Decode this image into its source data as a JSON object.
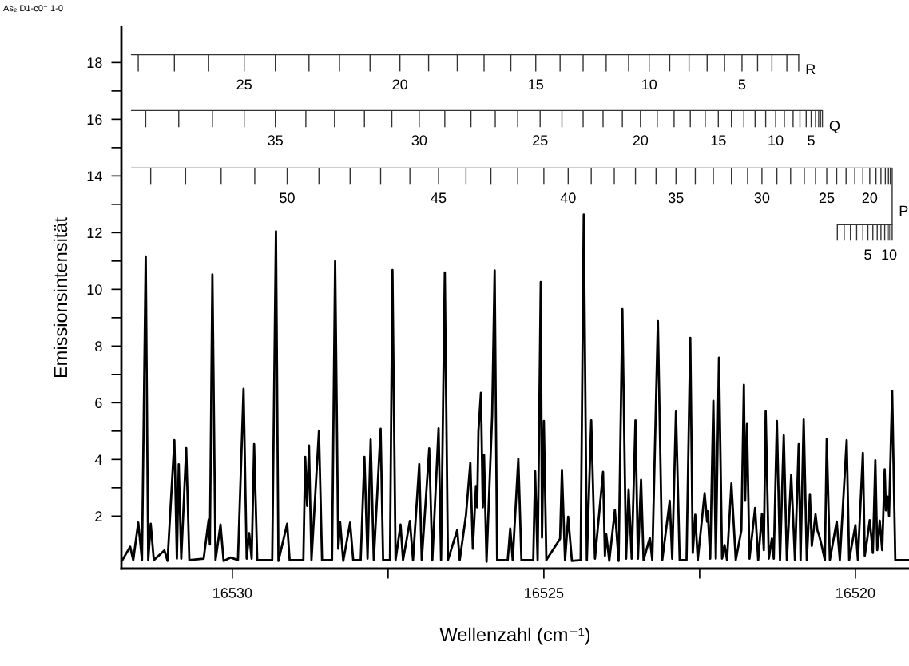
{
  "chart_data": {
    "type": "line",
    "title": "As₂ D1-c0⁻ 1-0",
    "xlabel": "Wellenzahl (cm⁻¹)",
    "ylabel": "Emissionsintensität",
    "xlim": [
      16531.78,
      16519.14
    ],
    "xticks": [
      16530,
      {
        "value": 16527.5,
        "label": null
      },
      16525,
      {
        "value": 16522.5,
        "label": null
      },
      16520
    ],
    "ylim": [
      0.15,
      19.25
    ],
    "yticks": [
      2,
      {
        "value": 3,
        "label": null
      },
      4,
      {
        "value": 5,
        "label": null
      },
      6,
      {
        "value": 7,
        "label": null
      },
      8,
      {
        "value": 9,
        "label": null
      },
      10,
      {
        "value": 11,
        "label": null
      },
      12,
      {
        "value": 13,
        "label": null
      },
      14,
      {
        "value": 15,
        "label": null
      },
      16,
      {
        "value": 17,
        "label": null
      },
      18
    ],
    "grid": false,
    "legend": false,
    "series": [
      {
        "color": "#000000",
        "x": [
          16531.77,
          16531.64,
          16531.59,
          16531.51,
          16531.45,
          16531.39,
          16531.35,
          16531.31,
          16531.26,
          16531.09,
          16531.04,
          16530.93,
          16530.89,
          16530.86,
          16530.82,
          16530.74,
          16530.69,
          16530.46,
          16530.38,
          16530.36,
          16530.32,
          16530.27,
          16530.19,
          16530.14,
          16530.03,
          16529.91,
          16529.82,
          16529.77,
          16529.73,
          16529.69,
          16529.65,
          16529.6,
          16529.36,
          16529.3,
          16529.26,
          16529.12,
          16529.08,
          16528.86,
          16528.83,
          16528.8,
          16528.77,
          16528.73,
          16528.61,
          16528.56,
          16528.4,
          16528.35,
          16528.3,
          16528.27,
          16528.22,
          16528.11,
          16528.06,
          16527.94,
          16527.88,
          16527.83,
          16527.78,
          16527.73,
          16527.62,
          16527.58,
          16527.47,
          16527.43,
          16527.38,
          16527.3,
          16527.26,
          16527.15,
          16527.1,
          16527.0,
          16526.96,
          16526.84,
          16526.79,
          16526.69,
          16526.65,
          16526.59,
          16526.54,
          16526.39,
          16526.35,
          16526.25,
          16526.18,
          16526.14,
          16526.09,
          16526.07,
          16526.05,
          16526.01,
          16525.98,
          16525.96,
          16525.92,
          16525.83,
          16525.79,
          16525.75,
          16525.58,
          16525.54,
          16525.5,
          16525.41,
          16525.36,
          16525.17,
          16525.14,
          16525.1,
          16525.05,
          16525.03,
          16525.0,
          16524.96,
          16524.74,
          16524.71,
          16524.66,
          16524.61,
          16524.55,
          16524.41,
          16524.36,
          16524.31,
          16524.24,
          16524.18,
          16524.05,
          16524.02,
          16524.0,
          16523.95,
          16523.86,
          16523.8,
          16523.74,
          16523.68,
          16523.64,
          16523.59,
          16523.53,
          16523.49,
          16523.44,
          16523.4,
          16523.3,
          16523.26,
          16523.17,
          16523.1,
          16522.98,
          16522.94,
          16522.88,
          16522.82,
          16522.71,
          16522.65,
          16522.61,
          16522.57,
          16522.53,
          16522.42,
          16522.38,
          16522.37,
          16522.33,
          16522.28,
          16522.24,
          16522.19,
          16522.14,
          16522.1,
          16522.06,
          16521.99,
          16521.92,
          16521.83,
          16521.79,
          16521.77,
          16521.74,
          16521.7,
          16521.61,
          16521.56,
          16521.5,
          16521.47,
          16521.44,
          16521.39,
          16521.34,
          16521.31,
          16521.26,
          16521.21,
          16521.15,
          16521.1,
          16521.03,
          16520.97,
          16520.91,
          16520.88,
          16520.83,
          16520.78,
          16520.73,
          16520.7,
          16520.64,
          16520.61,
          16520.58,
          16520.54,
          16520.49,
          16520.46,
          16520.41,
          16520.3,
          16520.25,
          16520.14,
          16520.1,
          16520.0,
          16519.96,
          16519.88,
          16519.85,
          16519.81,
          16519.77,
          16519.72,
          16519.68,
          16519.65,
          16519.61,
          16519.57,
          16519.53,
          16519.51,
          16519.48,
          16519.46,
          16519.41,
          16519.36,
          16519.14
        ],
        "values": [
          0.43,
          0.92,
          0.45,
          1.77,
          0.45,
          11.16,
          0.45,
          1.73,
          0.45,
          0.79,
          0.42,
          4.68,
          0.5,
          3.83,
          0.5,
          4.4,
          0.45,
          0.5,
          1.87,
          1.0,
          10.53,
          0.45,
          1.7,
          0.42,
          0.54,
          0.45,
          6.49,
          0.5,
          1.4,
          0.5,
          4.54,
          0.45,
          0.45,
          12.05,
          0.42,
          1.73,
          0.45,
          0.45,
          4.09,
          2.36,
          4.49,
          0.45,
          5.0,
          0.45,
          0.45,
          11.0,
          0.85,
          1.79,
          0.42,
          1.77,
          0.45,
          0.45,
          4.09,
          0.5,
          4.7,
          0.45,
          5.08,
          0.45,
          0.45,
          10.68,
          0.45,
          1.7,
          0.45,
          1.83,
          0.45,
          3.84,
          0.45,
          4.39,
          0.45,
          5.1,
          0.45,
          10.6,
          0.45,
          1.51,
          0.45,
          2.03,
          3.88,
          0.85,
          3.06,
          2.31,
          4.99,
          6.35,
          2.31,
          4.16,
          0.39,
          5.55,
          10.67,
          0.45,
          0.45,
          1.56,
          0.45,
          4.03,
          0.45,
          0.45,
          3.58,
          0.45,
          10.26,
          1.24,
          5.36,
          0.45,
          1.2,
          3.63,
          0.45,
          1.98,
          0.42,
          0.45,
          12.64,
          0.45,
          5.38,
          0.5,
          3.56,
          0.6,
          1.37,
          0.42,
          2.22,
          0.42,
          9.3,
          0.5,
          2.94,
          0.5,
          5.38,
          0.5,
          3.28,
          0.45,
          1.23,
          0.45,
          8.88,
          0.45,
          2.54,
          0.5,
          5.69,
          0.45,
          0.45,
          8.29,
          0.7,
          2.05,
          0.45,
          2.81,
          1.8,
          2.17,
          0.5,
          6.07,
          0.5,
          7.59,
          0.5,
          0.98,
          0.45,
          3.15,
          0.45,
          1.5,
          6.63,
          2.54,
          5.25,
          0.5,
          2.29,
          0.45,
          2.08,
          0.8,
          5.7,
          0.5,
          1.21,
          0.5,
          5.36,
          0.45,
          4.85,
          0.45,
          3.46,
          0.45,
          4.54,
          0.45,
          5.41,
          0.45,
          2.78,
          0.95,
          2.06,
          1.5,
          1.3,
          0.95,
          0.45,
          4.73,
          0.45,
          1.81,
          0.45,
          4.68,
          0.45,
          1.68,
          0.45,
          4.23,
          0.6,
          1.2,
          1.86,
          0.7,
          3.97,
          0.8,
          1.84,
          0.8,
          3.65,
          2.2,
          2.69,
          2.0,
          6.42,
          0.45,
          0.45
        ]
      },
      {
        "color": "#333333",
        "x": [
          16531.62,
          16531.51,
          16530.93,
          16530.38,
          16529.81,
          16529.31,
          16528.77,
          16528.28,
          16527.79,
          16527.31,
          16526.85,
          16526.39,
          16525.96,
          16525.53,
          16525.13,
          16524.74,
          16524.37,
          16524.0,
          16523.64,
          16523.31,
          16522.98,
          16522.67,
          16522.38,
          16522.1,
          16521.82,
          16521.57,
          16521.34,
          16521.1,
          16520.91
        ],
        "values": [
          18.28,
          18.28,
          18.28,
          18.28,
          18.28,
          18.28,
          18.28,
          18.28,
          18.28,
          18.28,
          18.28,
          18.28,
          18.28,
          18.28,
          18.28,
          18.28,
          18.28,
          18.28,
          18.28,
          18.28,
          18.28,
          18.28,
          18.28,
          18.28,
          18.28,
          18.28,
          18.28,
          18.28,
          18.28
        ],
        "errors": [
          null,
          [
            17.69,
            18.28
          ],
          [
            17.69,
            18.28
          ],
          [
            17.69,
            18.28
          ],
          [
            17.69,
            18.28
          ],
          [
            17.69,
            18.28
          ],
          [
            17.69,
            18.28
          ],
          [
            17.69,
            18.28
          ],
          [
            17.69,
            18.28
          ],
          [
            17.69,
            18.28
          ],
          [
            17.69,
            18.28
          ],
          [
            17.69,
            18.28
          ],
          [
            17.69,
            18.28
          ],
          [
            17.69,
            18.28
          ],
          [
            17.69,
            18.28
          ],
          [
            17.69,
            18.28
          ],
          [
            17.69,
            18.28
          ],
          [
            17.69,
            18.28
          ],
          [
            17.69,
            18.28
          ],
          [
            17.69,
            18.28
          ],
          [
            17.69,
            18.28
          ],
          [
            17.69,
            18.28
          ],
          [
            17.69,
            18.28
          ],
          [
            17.69,
            18.28
          ],
          [
            17.69,
            18.28
          ],
          [
            17.69,
            18.28
          ],
          [
            17.69,
            18.28
          ],
          [
            17.69,
            18.28
          ],
          [
            17.69,
            18.28
          ]
        ]
      },
      {
        "color": "#333333",
        "x": [
          16531.62,
          16531.39,
          16530.86,
          16530.32,
          16529.81,
          16529.31,
          16528.82,
          16528.36,
          16527.88,
          16527.44,
          16527.0,
          16526.59,
          16526.17,
          16525.78,
          16525.42,
          16525.06,
          16524.71,
          16524.37,
          16524.05,
          16523.74,
          16523.45,
          16523.18,
          16522.91,
          16522.65,
          16522.41,
          16522.2,
          16521.99,
          16521.79,
          16521.61,
          16521.44,
          16521.28,
          16521.14,
          16521.0,
          16520.89,
          16520.79,
          16520.71,
          16520.64,
          16520.59,
          16520.56,
          16520.53
        ],
        "values": [
          16.31,
          16.31,
          16.31,
          16.31,
          16.31,
          16.31,
          16.31,
          16.31,
          16.31,
          16.31,
          16.31,
          16.31,
          16.31,
          16.31,
          16.31,
          16.31,
          16.31,
          16.31,
          16.31,
          16.31,
          16.31,
          16.31,
          16.31,
          16.31,
          16.31,
          16.31,
          16.31,
          16.31,
          16.31,
          16.31,
          16.31,
          16.31,
          16.31,
          16.31,
          16.31,
          16.31,
          16.31,
          16.31,
          16.31,
          16.31
        ],
        "errors": [
          null,
          [
            15.72,
            16.31
          ],
          [
            15.72,
            16.31
          ],
          [
            15.72,
            16.31
          ],
          [
            15.72,
            16.31
          ],
          [
            15.72,
            16.31
          ],
          [
            15.72,
            16.31
          ],
          [
            15.72,
            16.31
          ],
          [
            15.72,
            16.31
          ],
          [
            15.72,
            16.31
          ],
          [
            15.72,
            16.31
          ],
          [
            15.72,
            16.31
          ],
          [
            15.72,
            16.31
          ],
          [
            15.72,
            16.31
          ],
          [
            15.72,
            16.31
          ],
          [
            15.72,
            16.31
          ],
          [
            15.72,
            16.31
          ],
          [
            15.72,
            16.31
          ],
          [
            15.72,
            16.31
          ],
          [
            15.72,
            16.31
          ],
          [
            15.72,
            16.31
          ],
          [
            15.72,
            16.31
          ],
          [
            15.72,
            16.31
          ],
          [
            15.72,
            16.31
          ],
          [
            15.72,
            16.31
          ],
          [
            15.72,
            16.31
          ],
          [
            15.72,
            16.31
          ],
          [
            15.72,
            16.31
          ],
          [
            15.72,
            16.31
          ],
          [
            15.72,
            16.31
          ],
          [
            15.72,
            16.31
          ],
          [
            15.72,
            16.31
          ],
          [
            15.72,
            16.31
          ],
          [
            15.72,
            16.31
          ],
          [
            15.72,
            16.31
          ],
          [
            15.72,
            16.31
          ],
          [
            15.72,
            16.31
          ],
          [
            15.72,
            16.31
          ],
          [
            15.72,
            16.31
          ],
          [
            15.72,
            16.31
          ]
        ]
      },
      {
        "color": "#333333",
        "x": [
          16531.62,
          16531.31,
          16530.75,
          16530.18,
          16529.64,
          16529.12,
          16528.61,
          16528.11,
          16527.62,
          16527.15,
          16526.69,
          16526.25,
          16525.85,
          16525.42,
          16525.0,
          16524.61,
          16524.24,
          16523.87,
          16523.53,
          16523.2,
          16522.88,
          16522.57,
          16522.28,
          16521.99,
          16521.73,
          16521.5,
          16521.26,
          16521.04,
          16520.82,
          16520.64,
          16520.46,
          16520.3,
          16520.15,
          16520.01,
          16519.88,
          16519.77,
          16519.67,
          16519.59,
          16519.52,
          16519.47,
          16519.44,
          16519.41,
          16519.41,
          16519.43,
          16519.46,
          16519.49,
          16519.53,
          16519.59,
          16519.65,
          16519.72,
          16519.8,
          16519.88,
          16519.98,
          16520.08,
          16520.18,
          16520.29
        ],
        "values": [
          14.28,
          14.28,
          14.28,
          14.28,
          14.28,
          14.28,
          14.28,
          14.28,
          14.28,
          14.28,
          14.28,
          14.28,
          14.28,
          14.28,
          14.28,
          14.28,
          14.28,
          14.28,
          14.28,
          14.28,
          14.28,
          14.28,
          14.28,
          14.28,
          14.28,
          14.28,
          14.28,
          14.28,
          14.28,
          14.28,
          14.28,
          14.28,
          14.28,
          14.28,
          14.28,
          14.28,
          14.28,
          14.28,
          14.28,
          14.28,
          14.28,
          14.28,
          12.28,
          12.28,
          12.28,
          12.28,
          12.28,
          12.28,
          12.28,
          12.28,
          12.28,
          12.28,
          12.28,
          12.28,
          12.28,
          12.28
        ],
        "errors": [
          null,
          [
            13.69,
            14.28
          ],
          [
            13.69,
            14.28
          ],
          [
            13.69,
            14.28
          ],
          [
            13.69,
            14.28
          ],
          [
            13.69,
            14.28
          ],
          [
            13.69,
            14.28
          ],
          [
            13.69,
            14.28
          ],
          [
            13.69,
            14.28
          ],
          [
            13.69,
            14.28
          ],
          [
            13.69,
            14.28
          ],
          [
            13.69,
            14.28
          ],
          [
            13.69,
            14.28
          ],
          [
            13.69,
            14.28
          ],
          [
            13.69,
            14.28
          ],
          [
            13.69,
            14.28
          ],
          [
            13.69,
            14.28
          ],
          [
            13.69,
            14.28
          ],
          [
            13.69,
            14.28
          ],
          [
            13.69,
            14.28
          ],
          [
            13.69,
            14.28
          ],
          [
            13.69,
            14.28
          ],
          [
            13.69,
            14.28
          ],
          [
            13.69,
            14.28
          ],
          [
            13.69,
            14.28
          ],
          [
            13.69,
            14.28
          ],
          [
            13.69,
            14.28
          ],
          [
            13.69,
            14.28
          ],
          [
            13.69,
            14.28
          ],
          [
            13.69,
            14.28
          ],
          [
            13.69,
            14.28
          ],
          [
            13.69,
            14.28
          ],
          [
            13.69,
            14.28
          ],
          [
            13.69,
            14.28
          ],
          [
            13.69,
            14.28
          ],
          [
            13.69,
            14.28
          ],
          [
            13.69,
            14.28
          ],
          [
            13.69,
            14.28
          ],
          [
            13.69,
            14.28
          ],
          [
            13.69,
            14.28
          ],
          [
            13.69,
            14.28
          ],
          null,
          [
            11.72,
            12.28
          ],
          [
            11.72,
            12.28
          ],
          [
            11.72,
            12.28
          ],
          [
            11.72,
            12.28
          ],
          [
            11.72,
            12.28
          ],
          [
            11.72,
            12.28
          ],
          [
            11.72,
            12.28
          ],
          [
            11.72,
            12.28
          ],
          [
            11.72,
            12.28
          ],
          [
            11.72,
            12.28
          ],
          [
            11.72,
            12.28
          ],
          [
            11.72,
            12.28
          ],
          [
            11.72,
            12.28
          ],
          [
            11.72,
            12.28
          ]
        ]
      }
    ],
    "annotations": [
      {
        "text": "25",
        "x": 16529.81,
        "y": 18.28
      },
      {
        "text": "20",
        "x": 16527.31,
        "y": 18.28
      },
      {
        "text": "15",
        "x": 16525.13,
        "y": 18.28
      },
      {
        "text": "10",
        "x": 16523.31,
        "y": 18.28
      },
      {
        "text": "5",
        "x": 16521.82,
        "y": 18.28
      },
      {
        "text": "R",
        "x": 16520.91,
        "y": 17.72
      },
      {
        "text": "35",
        "x": 16529.31,
        "y": 16.31
      },
      {
        "text": "30",
        "x": 16527.0,
        "y": 16.31
      },
      {
        "text": "25",
        "x": 16525.06,
        "y": 16.31
      },
      {
        "text": "20",
        "x": 16523.45,
        "y": 16.31
      },
      {
        "text": "15",
        "x": 16522.2,
        "y": 16.31
      },
      {
        "text": "10",
        "x": 16521.28,
        "y": 16.31
      },
      {
        "text": "5",
        "x": 16520.71,
        "y": 16.31
      },
      {
        "text": "Q",
        "x": 16520.53,
        "y": 15.73
      },
      {
        "text": "50",
        "x": 16529.12,
        "y": 14.28
      },
      {
        "text": "45",
        "x": 16526.69,
        "y": 14.28
      },
      {
        "text": "40",
        "x": 16524.61,
        "y": 14.28
      },
      {
        "text": "35",
        "x": 16522.88,
        "y": 14.28
      },
      {
        "text": "30",
        "x": 16521.5,
        "y": 14.28
      },
      {
        "text": "25",
        "x": 16520.46,
        "y": 14.28
      },
      {
        "text": "20",
        "x": 16519.77,
        "y": 14.28
      },
      {
        "text": "P",
        "x": 16519.41,
        "y": 12.73
      },
      {
        "text": "5",
        "x": 16519.8,
        "y": 12.28
      },
      {
        "text": "10",
        "x": 16519.46,
        "y": 12.28
      }
    ]
  }
}
